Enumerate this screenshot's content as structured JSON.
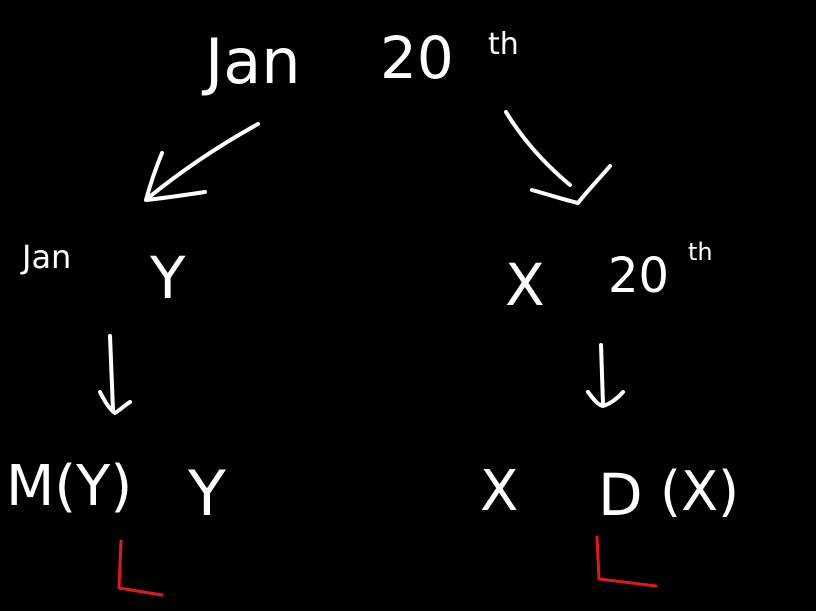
{
  "colors": {
    "background": "#000000",
    "ink": "#ffffff",
    "accent": "#e0191c"
  },
  "root": {
    "month": "Jan",
    "day": "20",
    "suffix": "th"
  },
  "left_branch": {
    "step1": {
      "month": "Jan",
      "var": "Y"
    },
    "step2": {
      "expr": "M(Y)",
      "var": "Y"
    }
  },
  "right_branch": {
    "step1": {
      "var": "X",
      "day": "20",
      "suffix": "th"
    },
    "step2": {
      "var": "X",
      "expr": "D",
      "arg": "(X)"
    }
  }
}
